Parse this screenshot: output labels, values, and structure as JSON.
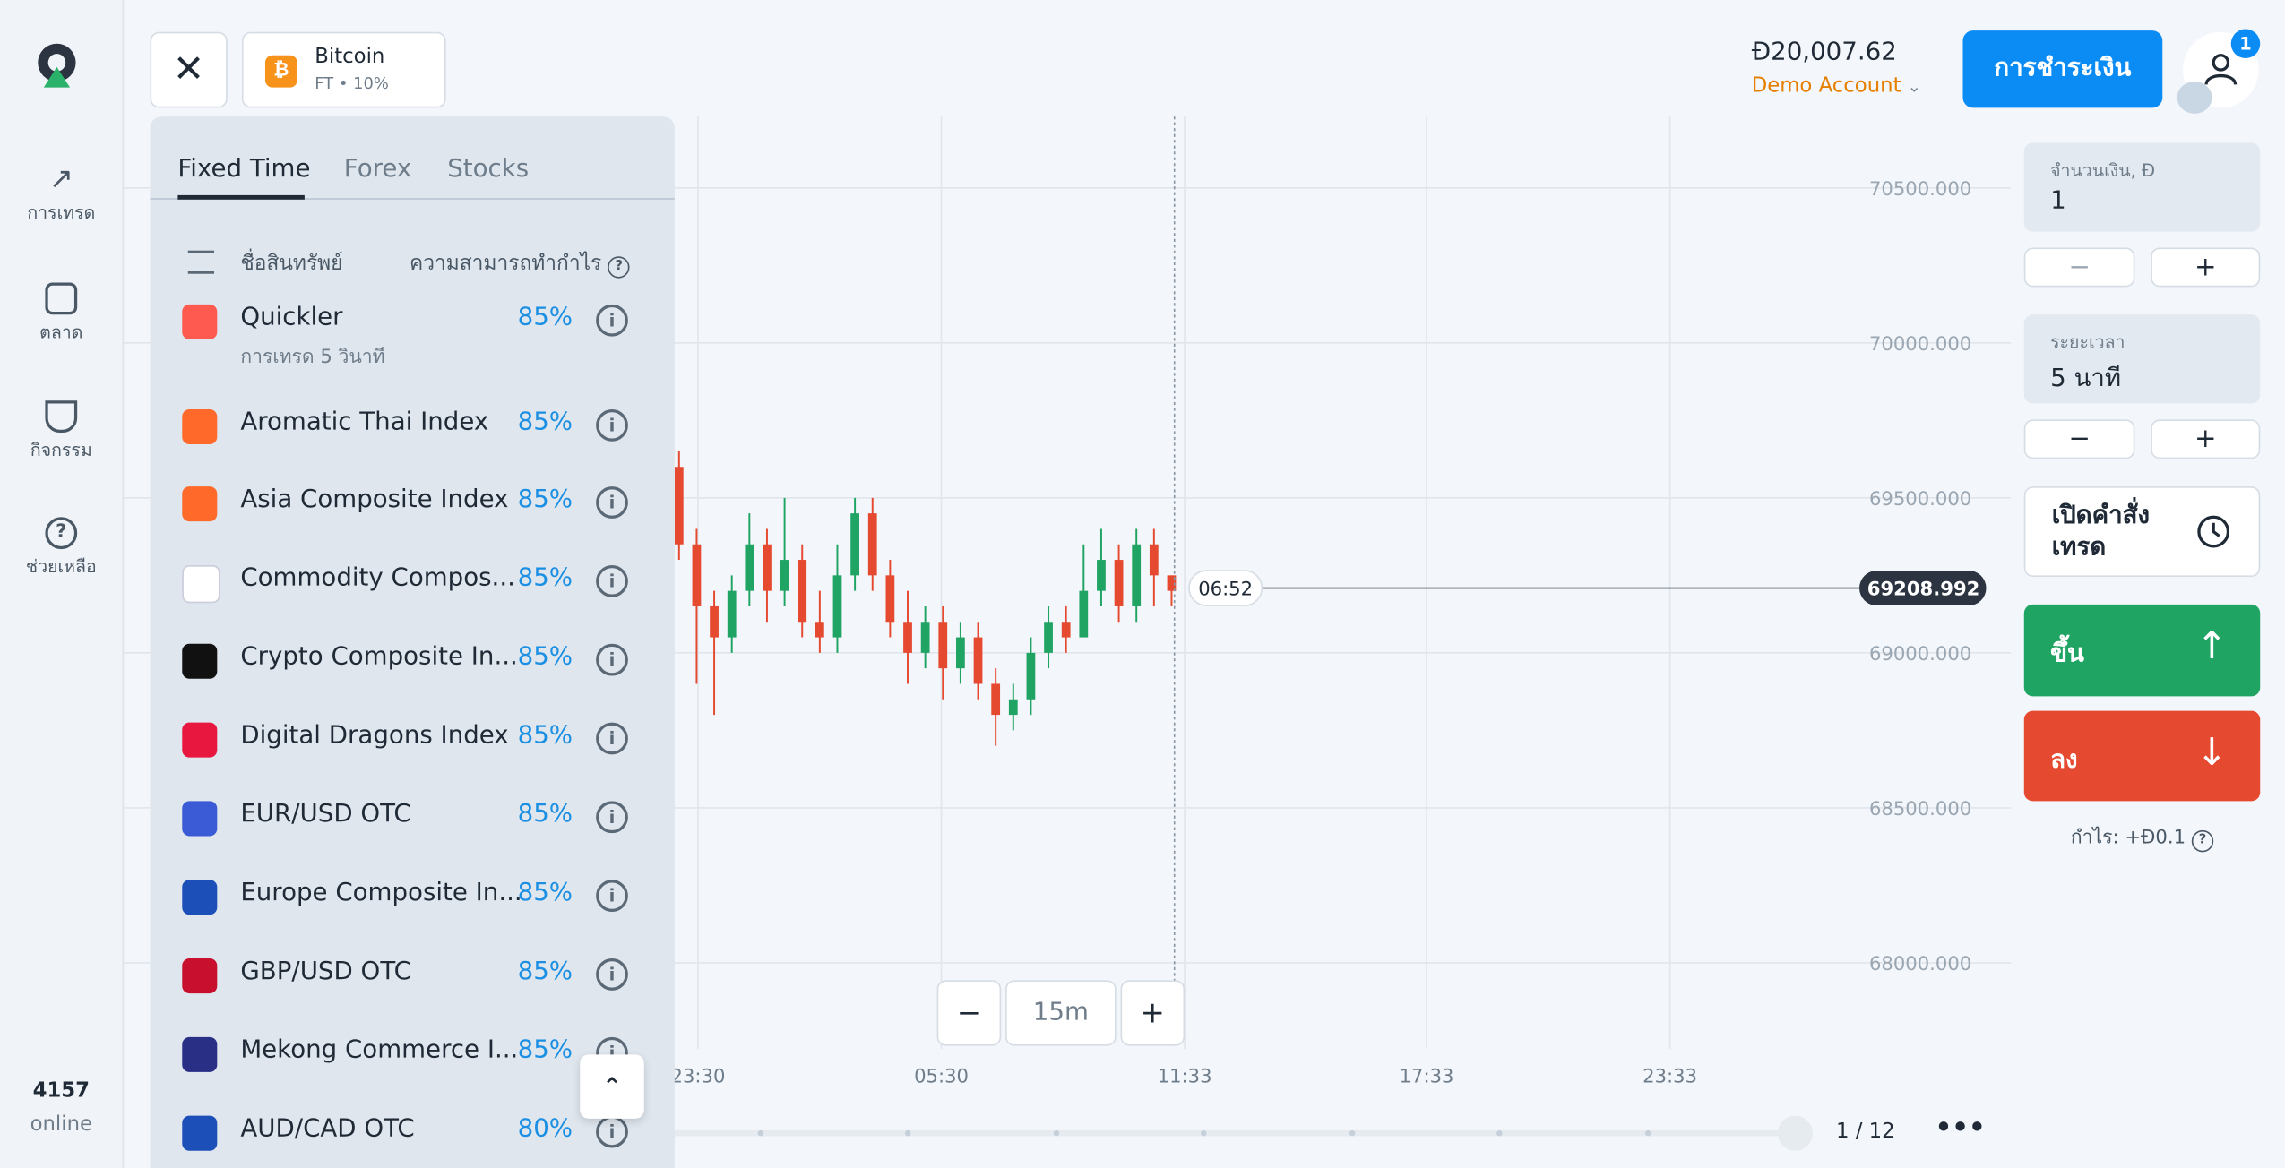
{
  "sidebar": {
    "nav": [
      "การเทรด",
      "ตลาด",
      "กิจกรรม",
      "ช่วยเหลือ"
    ],
    "online_count": "4157",
    "online_label": "online"
  },
  "header": {
    "asset_name": "Bitcoin",
    "asset_sub": "FT • 10%",
    "balance": "Đ20,007.62",
    "account_type": "Demo Account",
    "payment_button": "การชำระเงิน",
    "notifications": "1"
  },
  "asset_panel": {
    "tabs": [
      "Fixed Time",
      "Forex",
      "Stocks"
    ],
    "column_name": "ชื่อสินทรัพย์",
    "column_profit": "ความสามารถทำกำไร",
    "assets": [
      {
        "name": "Quickler",
        "sub": "การเทรด 5 วินาที",
        "payout": "85%"
      },
      {
        "name": "Aromatic Thai Index",
        "payout": "85%"
      },
      {
        "name": "Asia Composite Index",
        "payout": "85%"
      },
      {
        "name": "Commodity Compos...",
        "payout": "85%"
      },
      {
        "name": "Crypto Composite In...",
        "payout": "85%"
      },
      {
        "name": "Digital Dragons Index",
        "payout": "85%"
      },
      {
        "name": "EUR/USD OTC",
        "payout": "85%"
      },
      {
        "name": "Europe Composite In...",
        "payout": "85%"
      },
      {
        "name": "GBP/USD OTC",
        "payout": "85%"
      },
      {
        "name": "Mekong Commerce I...",
        "payout": "85%"
      },
      {
        "name": "AUD/CAD OTC",
        "payout": "80%"
      }
    ]
  },
  "chart": {
    "ylim": [
      67800,
      70700
    ],
    "yticks": [
      {
        "value": 70500,
        "label": "70500.000"
      },
      {
        "value": 70000,
        "label": "70000.000"
      },
      {
        "value": 69500,
        "label": "69500.000"
      },
      {
        "value": 69000,
        "label": "69000.000"
      },
      {
        "value": 68500,
        "label": "68500.000"
      },
      {
        "value": 68000,
        "label": "68000.000"
      }
    ],
    "xticks": [
      "23:30",
      "05:30",
      "11:33",
      "17:33",
      "23:33"
    ],
    "current_price": 69208.992,
    "countdown": "06:52",
    "timeframe": "15m",
    "page": "1 / 12",
    "candles": {
      "open": [
        69600,
        69350,
        69150,
        69050,
        69200,
        69350,
        69200,
        69300,
        69100,
        69050,
        69250,
        69450,
        69250,
        69100,
        69000,
        69100,
        68950,
        69050,
        68900,
        68800,
        68850,
        69000,
        69100,
        69050,
        69200,
        69300,
        69150,
        69350,
        69250
      ],
      "high": [
        69650,
        69400,
        69200,
        69250,
        69450,
        69400,
        69500,
        69350,
        69200,
        69350,
        69500,
        69500,
        69300,
        69200,
        69150,
        69150,
        69100,
        69100,
        68950,
        68900,
        69050,
        69150,
        69150,
        69350,
        69400,
        69350,
        69400,
        69400,
        69250
      ],
      "low": [
        69300,
        68900,
        68800,
        69000,
        69150,
        69100,
        69150,
        69050,
        69000,
        69000,
        69200,
        69200,
        69050,
        68900,
        68950,
        68850,
        68900,
        68850,
        68700,
        68750,
        68800,
        68950,
        69000,
        69050,
        69150,
        69100,
        69100,
        69150,
        69150
      ],
      "close": [
        69350,
        69150,
        69050,
        69200,
        69350,
        69200,
        69300,
        69100,
        69050,
        69250,
        69450,
        69250,
        69100,
        69000,
        69100,
        68950,
        69050,
        68900,
        68800,
        68850,
        69000,
        69100,
        69050,
        69200,
        69300,
        69150,
        69350,
        69250,
        69200
      ]
    }
  },
  "trade_panel": {
    "amount_label": "จำนวนเงิน, Đ",
    "amount": "1",
    "duration_label": "ระยะเวลา",
    "duration": "5 นาที",
    "open_order": "เปิดคำสั่งเทรด",
    "up": "ขึ้น",
    "down": "ลง",
    "profit": "กำไร: +Đ0.1"
  }
}
